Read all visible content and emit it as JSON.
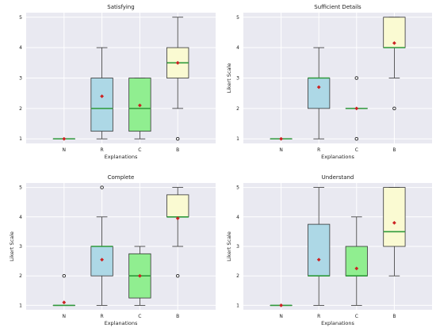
{
  "colors": {
    "N": "#90ee90",
    "R": "#add8e6",
    "C": "#90ee90",
    "B": "#fafad2",
    "median": "#2e9a3a",
    "mean": "#cc2222"
  },
  "chart_data": [
    {
      "type": "box",
      "title": "Satisfying",
      "xlabel": "Explanations",
      "ylabel": "",
      "ylim": [
        0.85,
        5.15
      ],
      "yticks": [
        1,
        2,
        3,
        4,
        5
      ],
      "grid": true,
      "categories": [
        "N",
        "R",
        "C",
        "B"
      ],
      "boxes": [
        {
          "category": "N",
          "min": 1,
          "q1": 1,
          "median": 1,
          "q3": 1,
          "max": 1,
          "mean": 1,
          "fliers": []
        },
        {
          "category": "R",
          "min": 1,
          "q1": 1.25,
          "median": 2,
          "q3": 3,
          "max": 4,
          "mean": 2.4,
          "fliers": []
        },
        {
          "category": "C",
          "min": 1,
          "q1": 1.25,
          "median": 2,
          "q3": 3,
          "max": 3,
          "mean": 2.1,
          "fliers": []
        },
        {
          "category": "B",
          "min": 2,
          "q1": 3,
          "median": 3.5,
          "q3": 4,
          "max": 5,
          "mean": 3.5,
          "fliers": [
            1
          ]
        }
      ]
    },
    {
      "type": "box",
      "title": "Sufficient Details",
      "xlabel": "Explanations",
      "ylabel": "Likert Scale",
      "ylim": [
        0.85,
        5.15
      ],
      "yticks": [
        1,
        2,
        3,
        4,
        5
      ],
      "grid": true,
      "categories": [
        "N",
        "R",
        "C",
        "B"
      ],
      "boxes": [
        {
          "category": "N",
          "min": 1,
          "q1": 1,
          "median": 1,
          "q3": 1,
          "max": 1,
          "mean": 1,
          "fliers": []
        },
        {
          "category": "R",
          "min": 1,
          "q1": 2,
          "median": 3,
          "q3": 3,
          "max": 4,
          "mean": 2.7,
          "fliers": []
        },
        {
          "category": "C",
          "min": 2,
          "q1": 2,
          "median": 2,
          "q3": 2,
          "max": 2,
          "mean": 2,
          "fliers": [
            1,
            3
          ]
        },
        {
          "category": "B",
          "min": 3,
          "q1": 4,
          "median": 4,
          "q3": 5,
          "max": 5,
          "mean": 4.15,
          "fliers": [
            2
          ]
        }
      ]
    },
    {
      "type": "box",
      "title": "Complete",
      "xlabel": "Explanations",
      "ylabel": "Likert Scale",
      "ylim": [
        0.85,
        5.15
      ],
      "yticks": [
        1,
        2,
        3,
        4,
        5
      ],
      "grid": true,
      "categories": [
        "N",
        "R",
        "C",
        "B"
      ],
      "boxes": [
        {
          "category": "N",
          "min": 1,
          "q1": 1,
          "median": 1,
          "q3": 1,
          "max": 1,
          "mean": 1.1,
          "fliers": [
            2
          ]
        },
        {
          "category": "R",
          "min": 1,
          "q1": 2,
          "median": 3,
          "q3": 3,
          "max": 4,
          "mean": 2.55,
          "fliers": [
            5
          ]
        },
        {
          "category": "C",
          "min": 1,
          "q1": 1.25,
          "median": 2,
          "q3": 2.75,
          "max": 3,
          "mean": 2,
          "fliers": []
        },
        {
          "category": "B",
          "min": 3,
          "q1": 4,
          "median": 4,
          "q3": 4.75,
          "max": 5,
          "mean": 3.95,
          "fliers": [
            2
          ]
        }
      ]
    },
    {
      "type": "box",
      "title": "Understand",
      "xlabel": "Explanations",
      "ylabel": "Likert Scale",
      "ylim": [
        0.85,
        5.15
      ],
      "yticks": [
        1,
        2,
        3,
        4,
        5
      ],
      "grid": true,
      "categories": [
        "N",
        "R",
        "C",
        "B"
      ],
      "boxes": [
        {
          "category": "N",
          "min": 1,
          "q1": 1,
          "median": 1,
          "q3": 1,
          "max": 1,
          "mean": 1,
          "fliers": []
        },
        {
          "category": "R",
          "min": 1,
          "q1": 2,
          "median": 2,
          "q3": 3.75,
          "max": 5,
          "mean": 2.55,
          "fliers": []
        },
        {
          "category": "C",
          "min": 1,
          "q1": 2,
          "median": 2,
          "q3": 3,
          "max": 4,
          "mean": 2.25,
          "fliers": []
        },
        {
          "category": "B",
          "min": 2,
          "q1": 3,
          "median": 3.5,
          "q3": 5,
          "max": 5,
          "mean": 3.8,
          "fliers": []
        }
      ]
    }
  ]
}
